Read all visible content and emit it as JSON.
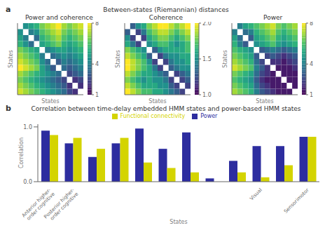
{
  "title": "Between-states (Riemannian) distances",
  "panel_labels": [
    "a",
    "b"
  ],
  "chart_data": [
    {
      "type": "heatmap",
      "title": "Power and coherence",
      "xlabel": "States",
      "ylabel": "States",
      "tick_labels": false,
      "cells": [
        [
          null,
          4.5,
          5.0,
          5.5,
          6.5,
          7.0,
          7.5,
          8.0,
          7.0,
          6.5,
          7.0,
          7.5
        ],
        [
          4.5,
          null,
          4.0,
          4.5,
          6.0,
          6.5,
          7.0,
          7.5,
          6.5,
          6.0,
          6.5,
          7.0
        ],
        [
          5.0,
          4.0,
          null,
          3.5,
          5.5,
          6.0,
          6.5,
          7.0,
          6.0,
          5.5,
          6.0,
          6.5
        ],
        [
          5.5,
          4.5,
          3.5,
          null,
          5.0,
          5.5,
          6.0,
          6.5,
          5.5,
          5.0,
          5.5,
          6.0
        ],
        [
          6.5,
          6.0,
          5.5,
          5.0,
          null,
          4.0,
          4.5,
          5.0,
          5.0,
          4.5,
          5.0,
          5.5
        ],
        [
          7.0,
          6.5,
          6.0,
          5.5,
          4.0,
          null,
          3.5,
          4.0,
          4.5,
          4.0,
          4.5,
          5.0
        ],
        [
          7.5,
          7.0,
          6.5,
          6.0,
          4.5,
          3.5,
          null,
          3.0,
          4.0,
          3.5,
          4.0,
          4.5
        ],
        [
          8.0,
          7.5,
          7.0,
          6.5,
          5.0,
          4.0,
          3.0,
          null,
          3.5,
          3.0,
          3.5,
          4.0
        ],
        [
          7.0,
          6.5,
          6.0,
          5.5,
          5.0,
          4.5,
          4.0,
          3.5,
          null,
          2.5,
          3.0,
          3.5
        ],
        [
          6.5,
          6.0,
          5.5,
          5.0,
          4.5,
          4.0,
          3.5,
          3.0,
          2.5,
          null,
          2.0,
          2.5
        ],
        [
          7.0,
          6.5,
          6.0,
          5.5,
          5.0,
          4.5,
          4.0,
          3.5,
          3.0,
          2.0,
          null,
          2.0
        ],
        [
          7.5,
          7.0,
          6.5,
          6.0,
          5.5,
          5.0,
          4.5,
          4.0,
          3.5,
          2.5,
          2.0,
          null
        ]
      ],
      "color_range": [
        1,
        8
      ],
      "color_ticks": [
        1,
        4,
        8
      ]
    },
    {
      "type": "heatmap",
      "title": "Coherence",
      "xlabel": "States",
      "ylabel": "States",
      "tick_labels": false,
      "cells": [
        [
          null,
          1.3,
          1.5,
          1.6,
          1.8,
          1.9,
          2.0,
          2.0,
          1.9,
          1.8,
          1.9,
          2.0
        ],
        [
          1.3,
          null,
          1.2,
          1.4,
          1.7,
          1.8,
          1.9,
          1.9,
          1.8,
          1.7,
          1.8,
          1.9
        ],
        [
          1.5,
          1.2,
          null,
          1.2,
          1.6,
          1.7,
          1.8,
          1.8,
          1.7,
          1.6,
          1.7,
          1.8
        ],
        [
          1.6,
          1.4,
          1.2,
          null,
          1.5,
          1.6,
          1.7,
          1.7,
          1.6,
          1.5,
          1.6,
          1.7
        ],
        [
          1.8,
          1.7,
          1.6,
          1.5,
          null,
          1.3,
          1.5,
          1.6,
          1.6,
          1.6,
          1.6,
          1.7
        ],
        [
          1.9,
          1.8,
          1.7,
          1.6,
          1.3,
          null,
          1.2,
          1.4,
          1.5,
          1.5,
          1.6,
          1.6
        ],
        [
          2.0,
          1.9,
          1.8,
          1.7,
          1.5,
          1.2,
          null,
          1.2,
          1.4,
          1.5,
          1.5,
          1.6
        ],
        [
          2.0,
          1.9,
          1.8,
          1.7,
          1.6,
          1.4,
          1.2,
          null,
          1.3,
          1.4,
          1.5,
          1.5
        ],
        [
          1.9,
          1.8,
          1.7,
          1.6,
          1.6,
          1.5,
          1.4,
          1.3,
          null,
          1.2,
          1.3,
          1.4
        ],
        [
          1.8,
          1.7,
          1.6,
          1.5,
          1.6,
          1.5,
          1.5,
          1.4,
          1.2,
          null,
          1.2,
          1.3
        ],
        [
          1.9,
          1.8,
          1.7,
          1.6,
          1.6,
          1.6,
          1.5,
          1.5,
          1.3,
          1.2,
          null,
          1.2
        ],
        [
          2.0,
          1.9,
          1.8,
          1.7,
          1.7,
          1.6,
          1.6,
          1.5,
          1.4,
          1.3,
          1.2,
          null
        ]
      ],
      "color_range": [
        1,
        2
      ],
      "color_ticks": [
        {
          "value": 1,
          "label": "1.0"
        },
        1.5,
        {
          "value": 2,
          "label": "2.0"
        }
      ]
    },
    {
      "type": "heatmap",
      "title": "Power",
      "xlabel": "States",
      "ylabel": "States",
      "tick_labels": false,
      "cells": [
        [
          null,
          4.0,
          5.0,
          5.5,
          6.0,
          6.5,
          7.0,
          7.5,
          6.5,
          6.0,
          6.5,
          7.0
        ],
        [
          4.0,
          null,
          3.5,
          4.0,
          5.5,
          6.0,
          6.5,
          7.0,
          6.0,
          5.5,
          6.0,
          6.5
        ],
        [
          5.0,
          3.5,
          null,
          3.0,
          5.0,
          5.5,
          6.0,
          6.5,
          5.5,
          5.0,
          5.5,
          6.0
        ],
        [
          5.5,
          4.0,
          3.0,
          null,
          4.5,
          5.0,
          5.5,
          6.0,
          5.0,
          4.5,
          5.0,
          5.5
        ],
        [
          6.0,
          5.5,
          5.0,
          4.5,
          null,
          3.0,
          3.5,
          4.0,
          3.5,
          3.0,
          3.5,
          4.0
        ],
        [
          6.5,
          6.0,
          5.5,
          5.0,
          3.0,
          null,
          2.5,
          3.0,
          2.5,
          2.0,
          2.5,
          3.0
        ],
        [
          7.0,
          6.5,
          6.0,
          5.5,
          3.5,
          2.5,
          null,
          2.0,
          2.0,
          1.5,
          2.0,
          2.5
        ],
        [
          7.5,
          7.0,
          6.5,
          6.0,
          4.0,
          3.0,
          2.0,
          null,
          1.5,
          1.5,
          1.5,
          2.0
        ],
        [
          6.5,
          6.0,
          5.5,
          5.0,
          3.5,
          2.5,
          2.0,
          1.5,
          null,
          1.5,
          1.5,
          1.5
        ],
        [
          6.0,
          5.5,
          5.0,
          4.5,
          3.0,
          2.0,
          1.5,
          1.5,
          1.5,
          null,
          1.5,
          1.5
        ],
        [
          6.5,
          6.0,
          5.5,
          5.0,
          3.5,
          2.5,
          2.0,
          1.5,
          1.5,
          1.5,
          null,
          1.5
        ],
        [
          7.0,
          6.5,
          6.0,
          5.5,
          4.0,
          3.0,
          2.5,
          2.0,
          1.5,
          1.5,
          1.5,
          null
        ]
      ],
      "color_range": [
        1,
        8
      ],
      "color_ticks": [
        1,
        4,
        8
      ]
    },
    {
      "type": "bar",
      "title": "Correlation between time-delay embedded HMM states and power-based HMM states",
      "xlabel": "States",
      "ylabel": "Correlation",
      "categories": [
        "Anterior higher-\norder cognitive",
        "Posterior higher-\norder cognitive",
        null,
        null,
        null,
        null,
        null,
        null,
        null,
        "Visual",
        null,
        "Sensorimotor"
      ],
      "series": [
        {
          "name": "Power",
          "color": "#2d2d9f",
          "values": [
            0.93,
            0.7,
            0.45,
            0.7,
            0.97,
            0.6,
            0.9,
            0.06,
            0.38,
            0.65,
            0.65,
            0.82
          ]
        },
        {
          "name": "Functional connectivity",
          "color": "#d4d400",
          "values": [
            0.85,
            0.8,
            0.6,
            0.8,
            0.35,
            0.25,
            0.17,
            0.0,
            0.17,
            0.08,
            0.3,
            0.82
          ]
        }
      ],
      "ylim": [
        0,
        1.05
      ],
      "yticks": [
        {
          "value": 0,
          "label": "0.0"
        },
        {
          "value": 1,
          "label": "1.0"
        }
      ],
      "legend": "top",
      "grid": false
    }
  ]
}
